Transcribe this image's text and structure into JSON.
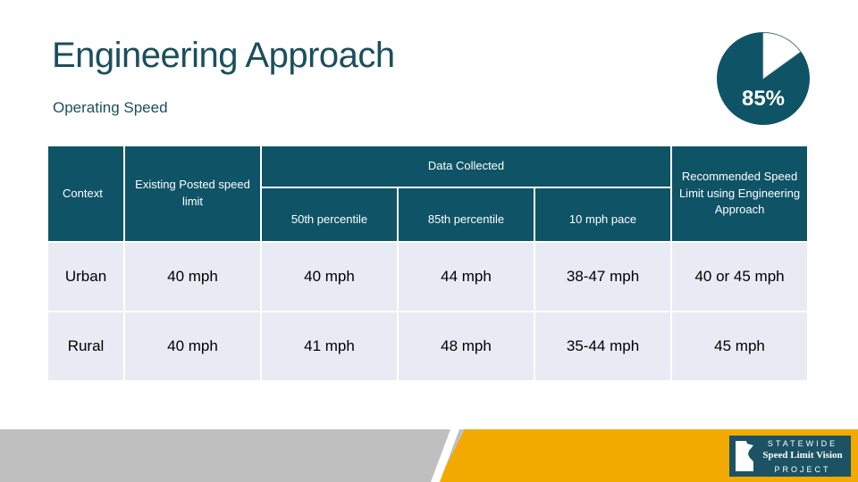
{
  "slide": {
    "title": "Engineering Approach",
    "subtitle": "Operating Speed",
    "pie_label": "85%",
    "pie_fraction": 0.85
  },
  "table": {
    "headers": {
      "context": "Context",
      "existing": "Existing Posted speed limit",
      "data_collected": "Data Collected",
      "p50": "50th percentile",
      "p85": "85th percentile",
      "pace": "10 mph pace",
      "recommended": "Recommended Speed Limit using Engineering Approach"
    },
    "rows": [
      [
        "Urban",
        "40 mph",
        "40 mph",
        "44 mph",
        "38-47 mph",
        "40 or 45 mph"
      ],
      [
        "Rural",
        "40 mph",
        "41 mph",
        "48 mph",
        "35-44 mph",
        "45 mph"
      ]
    ]
  },
  "logo": {
    "line1": "STATEWIDE",
    "line2": "Speed Limit Vision",
    "line3": "PROJECT",
    "state_text": "MINNESOTA"
  },
  "colors": {
    "header": "#0f5366",
    "cell": "#e8ebf4",
    "accent_orange": "#f2a900",
    "title": "#1b4f5c"
  }
}
